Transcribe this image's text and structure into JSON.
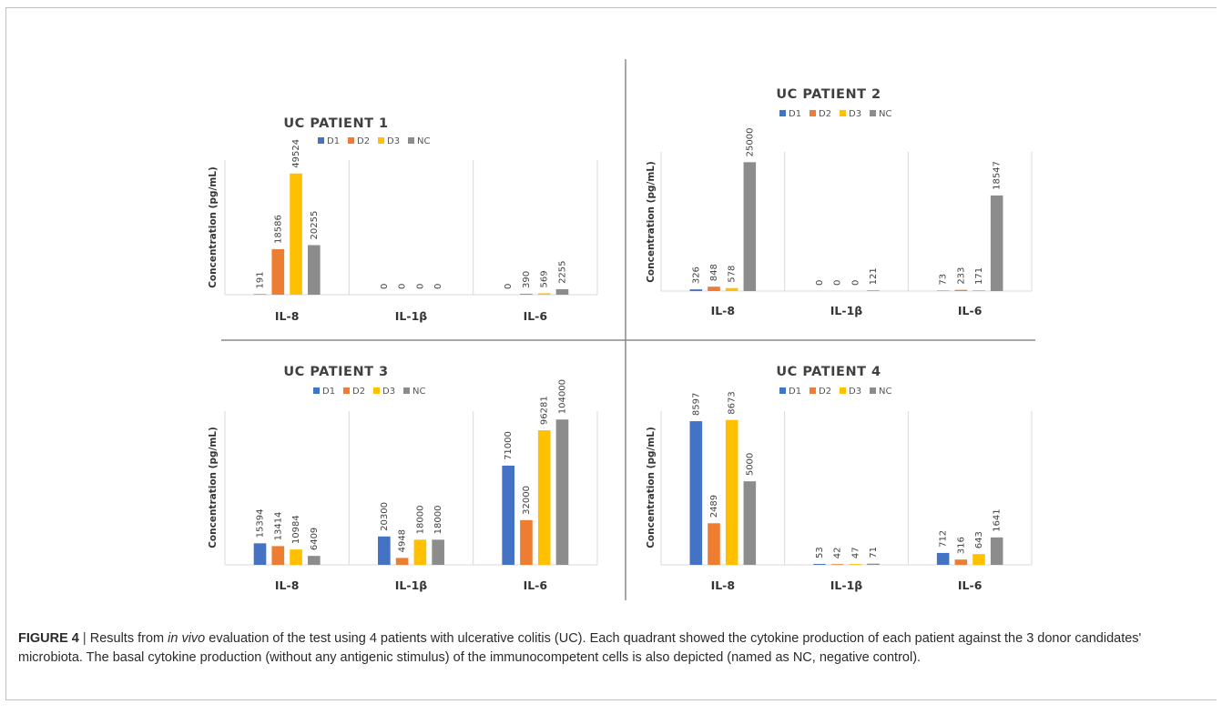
{
  "caption": {
    "label": "FIGURE 4",
    "separator": "|",
    "text_1": "Results from",
    "text_italic": "in vivo",
    "text_2": "evaluation of the test using 4 patients with ulcerative colitis (UC). Each quadrant showed the cytokine production of each patient against the 3 donor candidates' microbiota. The basal cytokine production (without any antigenic stimulus) of the immunocompetent cells is also depicted (named as NC, negative control)."
  },
  "colors": {
    "D1": "#4472c4",
    "D2": "#ed7d31",
    "D3": "#ffc000",
    "NC": "#8c8c8c",
    "divider": "#8a8a8a",
    "panel_line": "#d9d9d9"
  },
  "chart_data": [
    {
      "type": "bar",
      "title": "UC PATIENT 1",
      "ylabel": "Concentration (pg/mL)",
      "legend_position": "top",
      "groups": [
        "IL-8",
        "IL-1β",
        "IL-6"
      ],
      "series": [
        {
          "name": "D1",
          "values": [
            191,
            0,
            0
          ]
        },
        {
          "name": "D2",
          "values": [
            18586,
            0,
            390
          ]
        },
        {
          "name": "D3",
          "values": [
            49524,
            0,
            569
          ]
        },
        {
          "name": "NC",
          "values": [
            20255,
            0,
            2255
          ]
        }
      ],
      "ylim": [
        0,
        55000
      ]
    },
    {
      "type": "bar",
      "title": "UC PATIENT 2",
      "ylabel": "Concentration (pg/mL)",
      "legend_position": "top",
      "groups": [
        "IL-8",
        "IL-1β",
        "IL-6"
      ],
      "series": [
        {
          "name": "D1",
          "values": [
            326,
            0,
            73
          ]
        },
        {
          "name": "D2",
          "values": [
            848,
            0,
            233
          ]
        },
        {
          "name": "D3",
          "values": [
            578,
            0,
            171
          ]
        },
        {
          "name": "NC",
          "values": [
            25000,
            121,
            18547
          ]
        }
      ],
      "ylim": [
        0,
        27000
      ]
    },
    {
      "type": "bar",
      "title": "UC PATIENT 3",
      "ylabel": "Concentration (pg/mL)",
      "legend_position": "top",
      "groups": [
        "IL-8",
        "IL-1β",
        "IL-6"
      ],
      "series": [
        {
          "name": "D1",
          "values": [
            15394,
            20300,
            71000
          ]
        },
        {
          "name": "D2",
          "values": [
            13414,
            4948,
            32000
          ]
        },
        {
          "name": "D3",
          "values": [
            10984,
            18000,
            96281
          ]
        },
        {
          "name": "NC",
          "values": [
            6409,
            18000,
            104000
          ]
        }
      ],
      "ylim": [
        0,
        110000
      ]
    },
    {
      "type": "bar",
      "title": "UC PATIENT 4",
      "ylabel": "Concentration (pg/mL)",
      "legend_position": "top",
      "groups": [
        "IL-8",
        "IL-1β",
        "IL-6"
      ],
      "series": [
        {
          "name": "D1",
          "values": [
            8597,
            53,
            712
          ]
        },
        {
          "name": "D2",
          "values": [
            2489,
            42,
            316
          ]
        },
        {
          "name": "D3",
          "values": [
            8673,
            47,
            643
          ]
        },
        {
          "name": "NC",
          "values": [
            5000,
            71,
            1641
          ]
        }
      ],
      "ylim": [
        0,
        9200
      ]
    }
  ]
}
